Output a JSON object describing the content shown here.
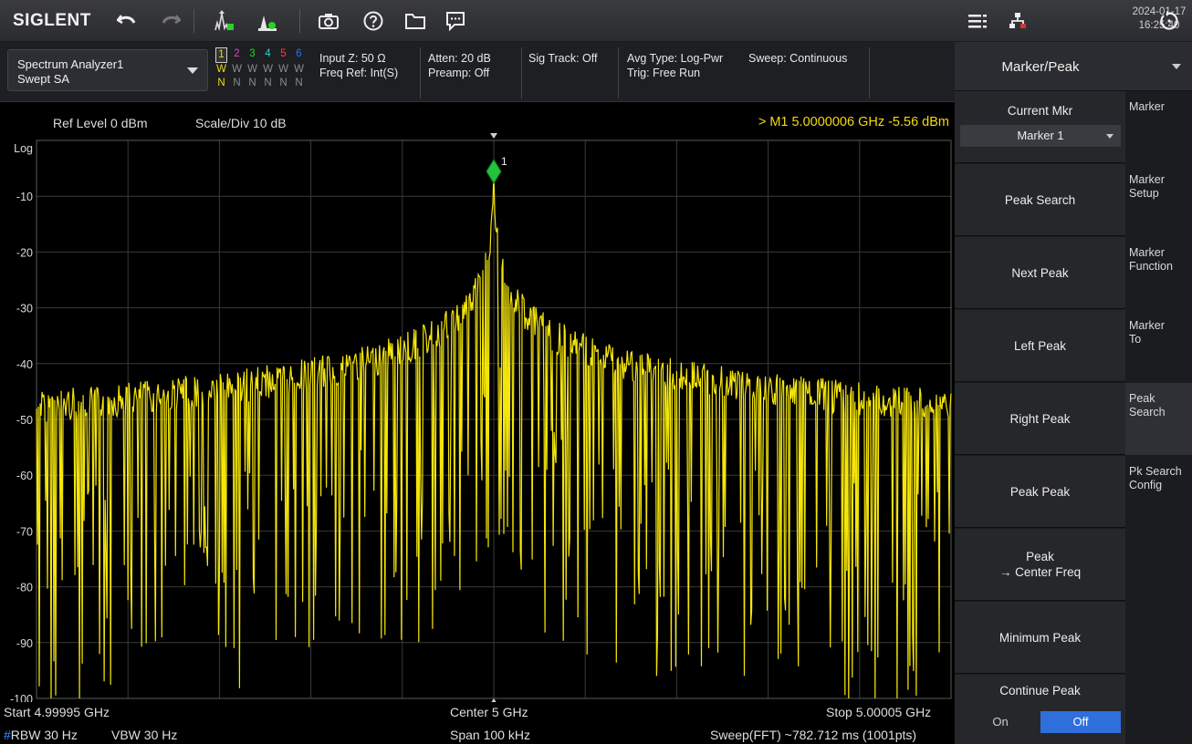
{
  "toolbar": {
    "logo": "SIGLENT",
    "date": "2024-01-17",
    "time": "16:25:40",
    "icons": [
      "undo-icon",
      "redo-icon",
      "peak-marker-icon",
      "auto-tune-icon",
      "camera-icon",
      "help-icon",
      "folder-icon",
      "message-icon",
      "menu-icon",
      "network-icon",
      "restart-icon"
    ]
  },
  "mode": {
    "line1": "Spectrum Analyzer1",
    "line2": "Swept SA"
  },
  "traces": {
    "numbers": [
      "1",
      "2",
      "3",
      "4",
      "5",
      "6"
    ],
    "types": [
      "W",
      "W",
      "W",
      "W",
      "W",
      "W"
    ],
    "detectors": [
      "N",
      "N",
      "N",
      "N",
      "N",
      "N"
    ],
    "colors": [
      "#f5d90a",
      "#e040c8",
      "#27d327",
      "#2dd0d0",
      "#ff3b30",
      "#2d6cff"
    ]
  },
  "info": {
    "input_z": "Input Z: 50 Ω",
    "freq_ref": "Freq Ref: Int(S)",
    "atten": "Atten: 20 dB",
    "preamp": "Preamp: Off",
    "sig_track": "Sig Track: Off",
    "avg_type": "Avg Type: Log-Pwr",
    "trig": "Trig: Free Run",
    "sweep": "Sweep: Continuous"
  },
  "plot": {
    "ref_level": "Ref Level  0 dBm",
    "scale_div": "Scale/Div  10 dB",
    "marker_readout": "> M1   5.0000006 GHz  -5.56 dBm",
    "marker_label": "1",
    "y_axis_labels": [
      "Log",
      "-10",
      "-20",
      "-30",
      "-40",
      "-50",
      "-60",
      "-70",
      "-80",
      "-90",
      "-100"
    ],
    "trace_color": "#f5e60a",
    "marker_color": "#21c43a"
  },
  "footer": {
    "start": "Start  4.99995 GHz",
    "center": "Center  5 GHz",
    "stop": "Stop  5.00005 GHz",
    "rbw_mark": "#",
    "rbw": "RBW  30 Hz",
    "vbw": "VBW  30 Hz",
    "span": "Span  100 kHz",
    "sweep": "Sweep(FFT)  ~782.712 ms (1001pts)"
  },
  "panel": {
    "title": "Marker/Peak",
    "current_mkr_label": "Current Mkr",
    "current_mkr_value": "Marker 1",
    "peak_search": "Peak Search",
    "next_peak": "Next Peak",
    "left_peak": "Left Peak",
    "right_peak": "Right Peak",
    "peak_peak": "Peak Peak",
    "peak_center_l1": "Peak",
    "peak_center_l2": "→ Center Freq",
    "minimum_peak": "Minimum Peak",
    "continue_peak": "Continue Peak",
    "toggle_on": "On",
    "toggle_off": "Off",
    "toggle_selected": "Off"
  },
  "tabs": [
    {
      "l1": "Marker",
      "l2": ""
    },
    {
      "l1": "Marker",
      "l2": "Setup"
    },
    {
      "l1": "Marker",
      "l2": "Function"
    },
    {
      "l1": "Marker",
      "l2": "To"
    },
    {
      "l1": "Peak",
      "l2": "Search"
    },
    {
      "l1": "Pk Search",
      "l2": "Config"
    }
  ],
  "active_tab": "Peak Search"
}
